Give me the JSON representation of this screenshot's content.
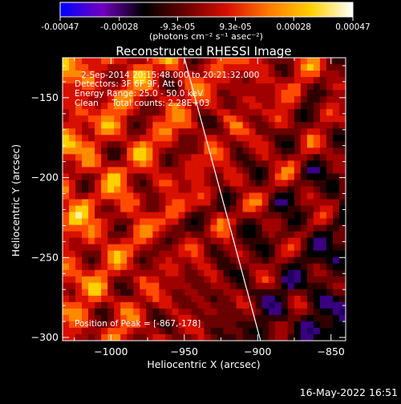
{
  "colorbar": {
    "tick_labels": [
      "-0.00047",
      "-0.00028",
      "-9.3e-05",
      "9.3e-05",
      "0.00028",
      "0.00047"
    ],
    "tick_values": [
      -0.00047,
      -0.00028,
      -9.3e-05,
      9.3e-05,
      0.00028,
      0.00047
    ],
    "range": [
      -0.00047,
      0.00047
    ],
    "unit_label": "(photons cm⁻² s⁻¹ asec⁻²)",
    "stops": [
      "#0000ff",
      "#7000c0",
      "#000000",
      "#6a0000",
      "#d81000",
      "#ff7a00",
      "#ffd000",
      "#ffffff"
    ]
  },
  "footer_timestamp": "16-May-2022 16:51",
  "chart_data": {
    "type": "heatmap",
    "title": "Reconstructed RHESSI Image",
    "xlabel": "Heliocentric X (arcsec)",
    "ylabel": "Heliocentric Y (arcsec)",
    "xlim": [
      -1033,
      -840
    ],
    "ylim": [
      -302,
      -125
    ],
    "x_ticks": [
      -1000,
      -950,
      -900,
      -850
    ],
    "x_tick_labels": [
      "−1000",
      "−950",
      "−900",
      "−850"
    ],
    "y_ticks": [
      -150,
      -200,
      -250,
      -300
    ],
    "y_tick_labels": [
      "−150",
      "−200",
      "−250",
      "−300"
    ],
    "annotations": [
      "2-Sep-2014 20:15:48.000 to 20:21:32.000",
      "Detectors: 3F 6F 9F, Att 0",
      "Energy Range: 25.0 - 50.0 keV",
      "Clean     Total counts: 2.28E+03"
    ],
    "peak_label": "Position of Peak = [-867,-178]",
    "peak": [
      -867,
      -178
    ],
    "limb_line": [
      [
        -950,
        -125
      ],
      [
        -898,
        -302
      ]
    ],
    "grid": false
  }
}
